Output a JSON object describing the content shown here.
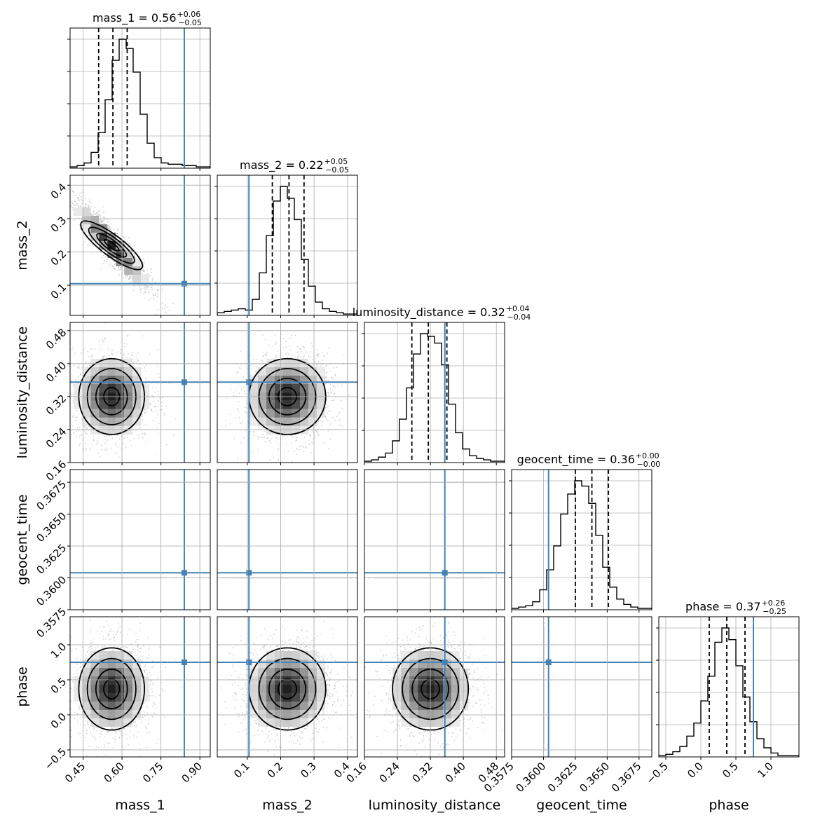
{
  "chart_data": {
    "type": "corner",
    "truth_color": "#4682b4",
    "line_color": "#000000",
    "grid": true,
    "parameters": [
      {
        "name": "mass_1",
        "label": "mass_1",
        "range": [
          0.4,
          0.94
        ],
        "ticks": [
          0.45,
          0.6,
          0.75,
          0.9
        ],
        "tick_labels": [
          "0.45",
          "0.60",
          "0.75",
          "0.90"
        ],
        "median": 0.56,
        "plus": 0.06,
        "minus": 0.05,
        "title_base": "mass_1 = 0.56",
        "title_plus": "+0.06",
        "title_minus": "−0.05",
        "quantiles": [
          0.51,
          0.565,
          0.62
        ],
        "truth": 0.84,
        "hist": [
          0.01,
          0.02,
          0.04,
          0.12,
          0.27,
          0.52,
          0.82,
          0.98,
          0.91,
          0.73,
          0.41,
          0.19,
          0.08,
          0.04,
          0.03,
          0.03,
          0.02,
          0.02,
          0.01,
          0.01
        ]
      },
      {
        "name": "mass_2",
        "label": "mass_2",
        "range": [
          0.01,
          0.43
        ],
        "ticks": [
          0.1,
          0.2,
          0.3,
          0.4
        ],
        "tick_labels": [
          "0.1",
          "0.2",
          "0.3",
          "0.4"
        ],
        "median": 0.22,
        "plus": 0.05,
        "minus": 0.05,
        "title_base": "mass_2 = 0.22",
        "title_plus": "+0.05",
        "title_minus": "−0.05",
        "quantiles": [
          0.175,
          0.225,
          0.27
        ],
        "truth": 0.105,
        "hist": [
          0.02,
          0.03,
          0.04,
          0.05,
          0.04,
          0.12,
          0.32,
          0.6,
          0.86,
          0.97,
          0.88,
          0.72,
          0.42,
          0.22,
          0.1,
          0.05,
          0.03,
          0.02,
          0.01,
          0.01
        ]
      },
      {
        "name": "luminosity_distance",
        "label": "luminosity_distance",
        "range": [
          0.16,
          0.5
        ],
        "ticks": [
          0.16,
          0.24,
          0.32,
          0.4,
          0.48
        ],
        "tick_labels": [
          "0.16",
          "0.24",
          "0.32",
          "0.40",
          "0.48"
        ],
        "median": 0.32,
        "plus": 0.04,
        "minus": 0.04,
        "title_base": "luminosity_distance = 0.32",
        "title_plus": "+0.04",
        "title_minus": "−0.04",
        "quantiles": [
          0.275,
          0.315,
          0.36
        ],
        "truth": 0.355,
        "hist": [
          0.01,
          0.02,
          0.04,
          0.07,
          0.16,
          0.32,
          0.55,
          0.8,
          0.95,
          0.93,
          0.88,
          0.72,
          0.43,
          0.22,
          0.1,
          0.05,
          0.03,
          0.02,
          0.01,
          0.01
        ]
      },
      {
        "name": "geocent_time",
        "label": "geocent_time",
        "range": [
          0.3575,
          0.3685
        ],
        "ticks": [
          0.3575,
          0.36,
          0.3625,
          0.365,
          0.3675
        ],
        "tick_labels": [
          "0.3575",
          "0.3600",
          "0.3625",
          "0.3650",
          "0.3675"
        ],
        "median": 0.36,
        "plus": 0.0,
        "minus": 0.0,
        "title_base": "geocent_time = 0.36",
        "title_plus": "+0.00",
        "title_minus": "−0.00",
        "quantiles": [
          0.3625,
          0.3638,
          0.3651
        ],
        "truth": 0.3604,
        "hist": [
          0.01,
          0.02,
          0.03,
          0.06,
          0.15,
          0.3,
          0.48,
          0.72,
          0.87,
          0.97,
          0.93,
          0.8,
          0.56,
          0.32,
          0.17,
          0.08,
          0.04,
          0.02,
          0.01,
          0.01
        ]
      },
      {
        "name": "phase",
        "label": "phase",
        "range": [
          -0.6,
          1.4
        ],
        "ticks": [
          -0.5,
          0.0,
          0.5,
          1.0
        ],
        "tick_labels": [
          "−0.5",
          "0.0",
          "0.5",
          "1.0"
        ],
        "median": 0.37,
        "plus": 0.26,
        "minus": 0.25,
        "title_base": "phase = 0.37",
        "title_plus": "+0.26",
        "title_minus": "−0.25",
        "quantiles": [
          0.12,
          0.37,
          0.63
        ],
        "truth": 0.75,
        "hist": [
          0.01,
          0.02,
          0.04,
          0.08,
          0.16,
          0.26,
          0.43,
          0.62,
          0.88,
          0.99,
          0.9,
          0.7,
          0.46,
          0.27,
          0.14,
          0.07,
          0.03,
          0.01,
          0.01,
          0.01
        ]
      }
    ],
    "correlations": {
      "1-0": -0.92,
      "2-0": 0.0,
      "2-1": 0.05,
      "3-0": 0.0,
      "3-1": -0.1,
      "3-2": -0.1,
      "4-0": 0.0,
      "4-1": 0.05,
      "4-2": 0.0,
      "4-3": 0.1
    }
  }
}
